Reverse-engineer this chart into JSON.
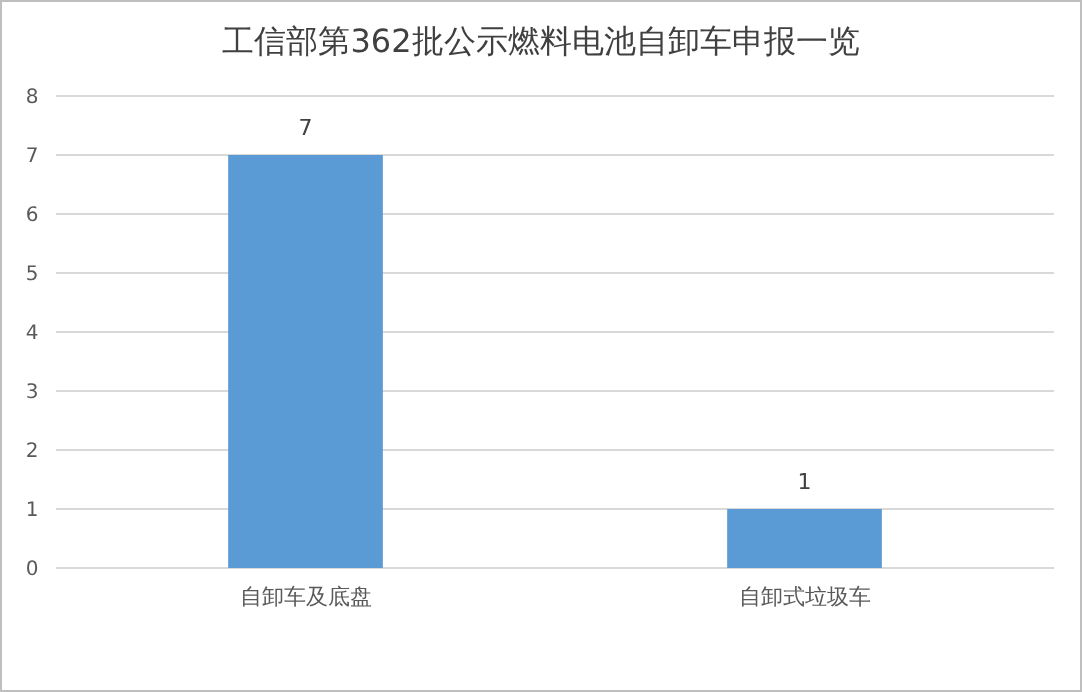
{
  "chart_data": {
    "type": "bar",
    "title": "工信部第362批公示燃料电池自卸车申报一览",
    "categories": [
      "自卸车及底盘",
      "自卸式垃圾车"
    ],
    "values": [
      7,
      1
    ],
    "color": "#5b9bd5",
    "ylim": [
      0,
      8
    ],
    "yticks": [
      0,
      1,
      2,
      3,
      4,
      5,
      6,
      7,
      8
    ],
    "grid": "y",
    "data_labels": true
  }
}
